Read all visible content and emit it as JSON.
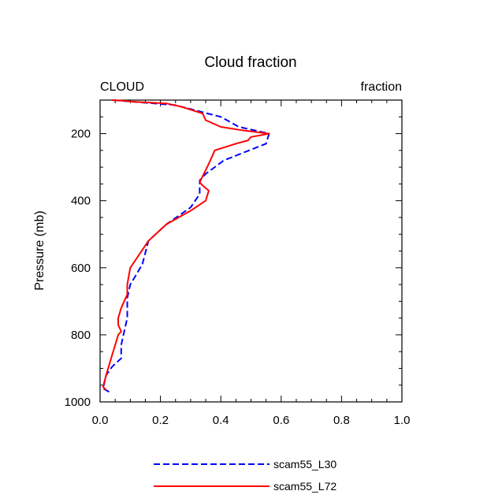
{
  "chart_data": {
    "type": "line",
    "title": "Cloud fraction",
    "left_string": "CLOUD",
    "right_string": "fraction",
    "xlabel": "",
    "ylabel": "Pressure (mb)",
    "xlim": [
      0.0,
      1.0
    ],
    "ylim": [
      1000,
      100
    ],
    "y_inverted": true,
    "x_ticks": [
      "0.0",
      "0.2",
      "0.4",
      "0.6",
      "0.8",
      "1.0"
    ],
    "y_ticks": [
      "200",
      "400",
      "600",
      "800",
      "1000"
    ],
    "grid": false,
    "legend_position": "bottom",
    "series": [
      {
        "name": "scam55_L30",
        "color": "#0000ff",
        "dash": "dashed",
        "x": [
          0.03,
          0.01,
          0.02,
          0.04,
          0.07,
          0.07,
          0.08,
          0.09,
          0.09,
          0.09,
          0.1,
          0.12,
          0.14,
          0.16,
          0.22,
          0.3,
          0.33,
          0.33,
          0.35,
          0.41,
          0.55,
          0.56,
          0.46,
          0.4,
          0.27,
          0.25,
          0.04
        ],
        "y": [
          970,
          960,
          920,
          895,
          870,
          830,
          790,
          750,
          720,
          690,
          650,
          620,
          590,
          520,
          470,
          420,
          380,
          340,
          320,
          280,
          230,
          200,
          180,
          150,
          120,
          115,
          100
        ]
      },
      {
        "name": "scam55_L72",
        "color": "#ff0000",
        "dash": "solid",
        "x": [
          0.02,
          0.01,
          0.02,
          0.03,
          0.04,
          0.05,
          0.06,
          0.07,
          0.06,
          0.06,
          0.07,
          0.08,
          0.09,
          0.09,
          0.1,
          0.13,
          0.16,
          0.22,
          0.3,
          0.35,
          0.36,
          0.34,
          0.33,
          0.36,
          0.38,
          0.45,
          0.49,
          0.5,
          0.56,
          0.47,
          0.4,
          0.35,
          0.34,
          0.27,
          0.22,
          0.11,
          0.08,
          0.04
        ],
        "y": [
          965,
          955,
          920,
          890,
          860,
          830,
          800,
          790,
          770,
          750,
          720,
          700,
          680,
          650,
          600,
          560,
          520,
          470,
          430,
          400,
          370,
          355,
          345,
          290,
          250,
          230,
          220,
          210,
          200,
          190,
          180,
          160,
          140,
          120,
          110,
          105,
          102,
          100
        ]
      }
    ]
  }
}
